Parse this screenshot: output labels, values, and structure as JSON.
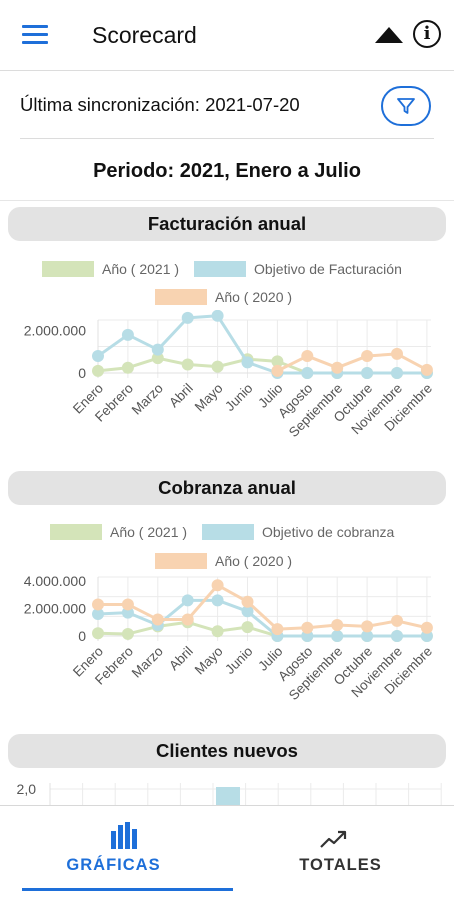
{
  "header": {
    "title": "Scorecard",
    "menu_icon": "hamburger-menu-icon",
    "collapse_icon": "triangle-up-icon",
    "info_icon": "info-circle-icon",
    "info_glyph": "i"
  },
  "sync": {
    "label": "Última sincronización: 2021-07-20",
    "filter_icon": "filter-funnel-icon"
  },
  "period": {
    "label": "Periodo: 2021, Enero a Julio"
  },
  "colors": {
    "accent": "#1e6fd9",
    "green": "#d4e4b9",
    "blue": "#b7dde6",
    "orange": "#f8d3b1"
  },
  "charts": {
    "months": [
      "Enero",
      "Febrero",
      "Marzo",
      "Abril",
      "Mayo",
      "Junio",
      "Julio",
      "Agosto",
      "Septiembre",
      "Octubre",
      "Noviembre",
      "Diciembre"
    ],
    "facturacion": {
      "title": "Facturación anual",
      "legend": [
        "Año ( 2021 )",
        "Objetivo de Facturación",
        "Año ( 2020 )"
      ]
    },
    "cobranza": {
      "title": "Cobranza anual",
      "legend": [
        "Año ( 2021 )",
        "Objetivo de cobranza",
        "Año ( 2020 )"
      ]
    },
    "clientes": {
      "title": "Clientes nuevos",
      "y_tick": "2,0"
    }
  },
  "chart_data": [
    {
      "type": "line",
      "title": "Facturación anual",
      "x": [
        "Enero",
        "Febrero",
        "Marzo",
        "Abril",
        "Mayo",
        "Junio",
        "Julio",
        "Agosto",
        "Septiembre",
        "Octubre",
        "Noviembre",
        "Diciembre"
      ],
      "y_ticks": [
        "0",
        "2.000.000"
      ],
      "ylim": [
        0,
        2500000
      ],
      "legend_position": "top",
      "grid": true,
      "series": [
        {
          "name": "Año ( 2021 )",
          "color": "#d4e4b9",
          "values": [
            100000,
            250000,
            700000,
            400000,
            300000,
            650000,
            550000,
            0,
            0,
            0,
            0,
            0
          ]
        },
        {
          "name": "Objetivo de Facturación",
          "color": "#b7dde6",
          "values": [
            800000,
            1800000,
            1100000,
            2600000,
            2700000,
            500000,
            0,
            0,
            0,
            0,
            0,
            0
          ]
        },
        {
          "name": "Año ( 2020 )",
          "color": "#f8d3b1",
          "values": [
            null,
            null,
            null,
            null,
            null,
            null,
            100000,
            800000,
            250000,
            800000,
            900000,
            150000
          ]
        }
      ]
    },
    {
      "type": "line",
      "title": "Cobranza anual",
      "x": [
        "Enero",
        "Febrero",
        "Marzo",
        "Abril",
        "Mayo",
        "Junio",
        "Julio",
        "Agosto",
        "Septiembre",
        "Octubre",
        "Noviembre",
        "Diciembre"
      ],
      "y_ticks": [
        "0",
        "2.000.000",
        "4.000.000"
      ],
      "ylim": [
        0,
        4300000
      ],
      "legend_position": "top",
      "grid": true,
      "series": [
        {
          "name": "Año ( 2021 )",
          "color": "#d4e4b9",
          "values": [
            200000,
            150000,
            700000,
            1000000,
            350000,
            650000,
            0,
            0,
            0,
            0,
            0,
            0
          ]
        },
        {
          "name": "Objetivo de cobranza",
          "color": "#b7dde6",
          "values": [
            1600000,
            1700000,
            800000,
            2600000,
            2600000,
            1800000,
            0,
            0,
            0,
            0,
            0,
            0
          ]
        },
        {
          "name": "Año ( 2020 )",
          "color": "#f8d3b1",
          "values": [
            2300000,
            2300000,
            1200000,
            1200000,
            3700000,
            2500000,
            500000,
            600000,
            800000,
            700000,
            1100000,
            600000
          ]
        }
      ]
    },
    {
      "type": "bar",
      "title": "Clientes nuevos",
      "y_ticks": [
        "2,0"
      ],
      "visible_bar_category_index": 5,
      "grid": true
    }
  ],
  "bottom_nav": {
    "tabs": [
      {
        "label": "GRÁFICAS",
        "icon": "bar-chart-icon",
        "active": true
      },
      {
        "label": "TOTALES",
        "icon": "trending-up-icon",
        "active": false
      }
    ]
  }
}
